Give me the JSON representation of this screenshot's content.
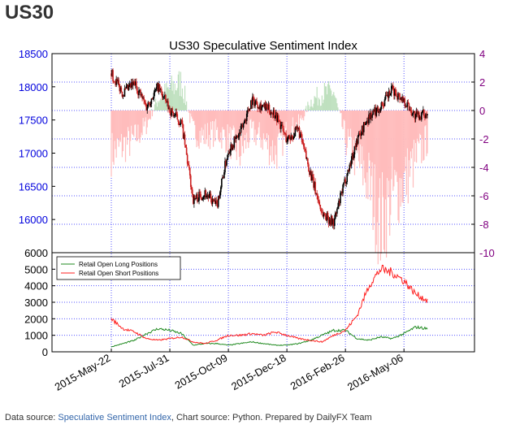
{
  "page": {
    "heading": "US30",
    "footer": {
      "prefix": "Data source: ",
      "link": "Speculative Sentiment Index",
      "suffix": ", Chart source: Python. Prepared by DailyFX Team"
    }
  },
  "colors": {
    "candle": "#000000",
    "candle_down": "#cc2222",
    "ssi_positive": "#bfe0bf",
    "ssi_negative": "#ffbcbc",
    "long_line": "#228b22",
    "short_line": "#ff2020",
    "grid": "#5555ff",
    "left_axis_text": "#0000dd",
    "right_axis_text": "#800080"
  },
  "chart_data": [
    {
      "type": "candlestick",
      "title": "US30 Speculative Sentiment Index",
      "ylim": [
        15500,
        18500
      ],
      "yticks": [
        15500,
        16000,
        16500,
        17000,
        17500,
        18000,
        18500
      ],
      "ytick_labels": [
        "",
        "16000",
        "16500",
        "17000",
        "17500",
        "18000",
        "18500"
      ],
      "y2lim": [
        -10,
        4
      ],
      "y2ticks": [
        -10,
        -8,
        -6,
        -4,
        -2,
        0,
        2,
        4
      ],
      "grid": true,
      "x": [
        "2015-05-22",
        "2015-06-05",
        "2015-06-19",
        "2015-07-03",
        "2015-07-17",
        "2015-07-31",
        "2015-08-14",
        "2015-08-28",
        "2015-09-11",
        "2015-09-25",
        "2015-10-09",
        "2015-10-23",
        "2015-11-06",
        "2015-11-20",
        "2015-12-04",
        "2015-12-18",
        "2016-01-01",
        "2016-01-15",
        "2016-01-29",
        "2016-02-12",
        "2016-02-26",
        "2016-03-11",
        "2016-03-25",
        "2016-04-08",
        "2016-04-22",
        "2016-05-06",
        "2016-05-20",
        "2016-06-03"
      ],
      "close": [
        18200,
        17900,
        18050,
        17700,
        18000,
        17650,
        17450,
        16300,
        16400,
        16200,
        17050,
        17300,
        17800,
        17700,
        17600,
        17200,
        17350,
        16700,
        16100,
        15950,
        16600,
        17200,
        17550,
        17700,
        17950,
        17800,
        17550,
        17600
      ],
      "sentiment_ratio": [
        -3,
        -2.5,
        -2,
        -1,
        0.8,
        1.5,
        2,
        -1.5,
        -1.8,
        -1.5,
        -2,
        -3,
        -1.5,
        -2,
        -3,
        -1.5,
        -1,
        0.6,
        1.2,
        1.3,
        -2,
        -3.5,
        -5,
        -8,
        -6,
        -5,
        -3.5,
        -2
      ]
    },
    {
      "type": "line",
      "ylim": [
        0,
        6000
      ],
      "yticks": [
        0,
        1000,
        2000,
        3000,
        4000,
        5000,
        6000
      ],
      "grid": true,
      "legend": "top-left",
      "x": [
        "2015-05-22",
        "2015-06-05",
        "2015-06-19",
        "2015-07-03",
        "2015-07-17",
        "2015-07-31",
        "2015-08-14",
        "2015-08-28",
        "2015-09-11",
        "2015-09-25",
        "2015-10-09",
        "2015-10-23",
        "2015-11-06",
        "2015-11-20",
        "2015-12-04",
        "2015-12-18",
        "2016-01-01",
        "2016-01-15",
        "2016-01-29",
        "2016-02-12",
        "2016-02-26",
        "2016-03-11",
        "2016-03-25",
        "2016-04-08",
        "2016-04-22",
        "2016-05-06",
        "2016-05-20",
        "2016-06-03"
      ],
      "xtick_labels": [
        "2015-May-22",
        "2015-Jul-31",
        "2015-Oct-09",
        "2015-Dec-18",
        "2016-Feb-26",
        "2016-May-06"
      ],
      "series": [
        {
          "name": "Retail Open Long Positions",
          "values": [
            300,
            500,
            700,
            1100,
            1400,
            1300,
            1100,
            400,
            500,
            500,
            400,
            500,
            600,
            500,
            400,
            400,
            500,
            700,
            1000,
            1300,
            1300,
            800,
            700,
            900,
            800,
            1100,
            1500,
            1400
          ]
        },
        {
          "name": "Retail Open Short Positions",
          "values": [
            2000,
            1400,
            1200,
            800,
            700,
            800,
            900,
            600,
            500,
            700,
            1000,
            1000,
            1100,
            1000,
            1200,
            1000,
            800,
            700,
            600,
            1000,
            1300,
            2200,
            4000,
            5000,
            4800,
            4300,
            3500,
            3100
          ]
        }
      ]
    }
  ]
}
